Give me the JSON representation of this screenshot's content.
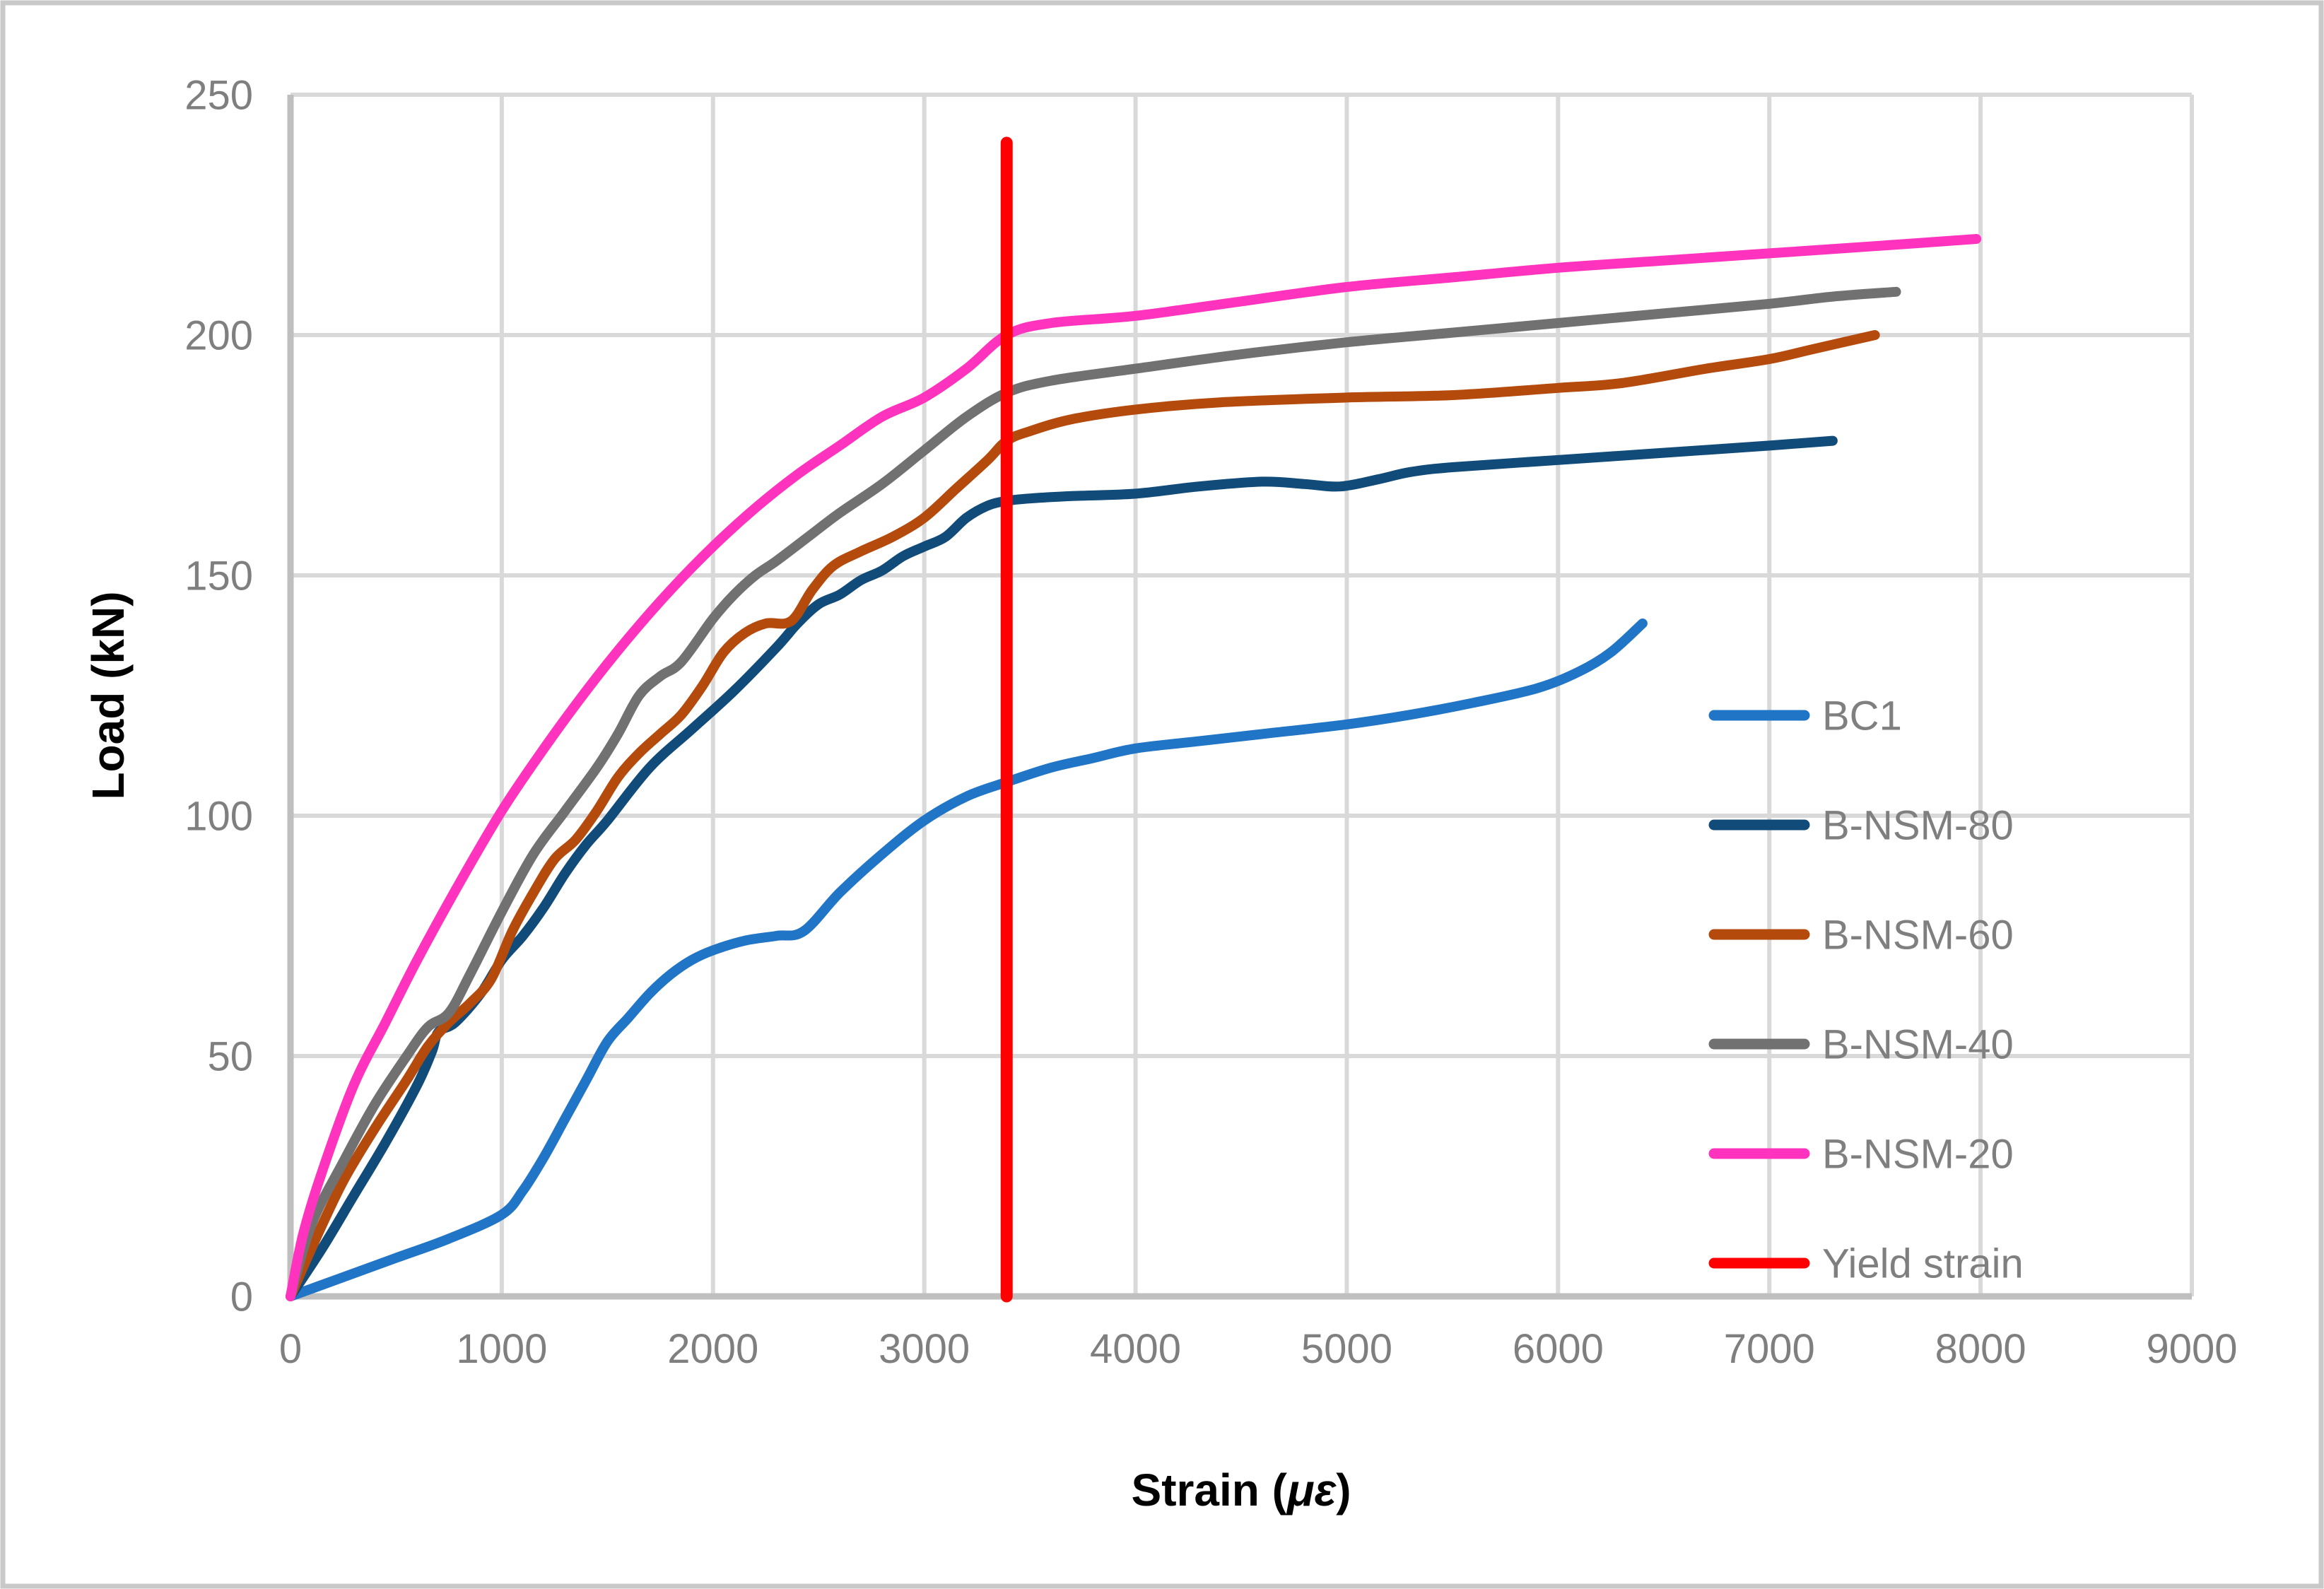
{
  "chart_data": {
    "type": "line",
    "title": "",
    "xlabel": "Strain (με)",
    "xlabel_parts": {
      "prefix": "Strain (",
      "mu": "με",
      "suffix": ")"
    },
    "ylabel": "Load (kN)",
    "xlim": [
      0,
      9000
    ],
    "ylim": [
      0,
      250
    ],
    "xticks": [
      0,
      1000,
      2000,
      3000,
      4000,
      5000,
      6000,
      7000,
      8000,
      9000
    ],
    "yticks": [
      0,
      50,
      100,
      150,
      200,
      250
    ],
    "grid": true,
    "legend_position": "middle-right",
    "legend": [
      "BC1",
      "B-NSM-80",
      "B-NSM-60",
      "B-NSM-40",
      "B-NSM-20",
      "Yield strain"
    ],
    "series": [
      {
        "name": "BC1",
        "color": "#2175C6",
        "points": [
          [
            0,
            0
          ],
          [
            250,
            4
          ],
          [
            500,
            8
          ],
          [
            750,
            12
          ],
          [
            1000,
            17
          ],
          [
            1100,
            22
          ],
          [
            1200,
            29
          ],
          [
            1300,
            37
          ],
          [
            1400,
            45
          ],
          [
            1500,
            53
          ],
          [
            1600,
            58
          ],
          [
            1700,
            63
          ],
          [
            1800,
            67
          ],
          [
            1900,
            70
          ],
          [
            2000,
            72
          ],
          [
            2150,
            74
          ],
          [
            2300,
            75
          ],
          [
            2430,
            76
          ],
          [
            2600,
            84
          ],
          [
            2800,
            92
          ],
          [
            3000,
            99
          ],
          [
            3200,
            104
          ],
          [
            3390,
            107
          ],
          [
            3600,
            110
          ],
          [
            3800,
            112
          ],
          [
            4000,
            114
          ],
          [
            4300,
            115.5
          ],
          [
            4600,
            117
          ],
          [
            5000,
            119
          ],
          [
            5300,
            121
          ],
          [
            5600,
            123.5
          ],
          [
            5900,
            126.5
          ],
          [
            6100,
            130
          ],
          [
            6250,
            134
          ],
          [
            6400,
            140
          ]
        ]
      },
      {
        "name": "B-NSM-80",
        "color": "#114B79",
        "points": [
          [
            0,
            0
          ],
          [
            150,
            10
          ],
          [
            300,
            21
          ],
          [
            450,
            32
          ],
          [
            600,
            44
          ],
          [
            670,
            51
          ],
          [
            700,
            55
          ],
          [
            780,
            57
          ],
          [
            900,
            63
          ],
          [
            1000,
            70
          ],
          [
            1100,
            75
          ],
          [
            1200,
            81
          ],
          [
            1300,
            88
          ],
          [
            1400,
            94
          ],
          [
            1500,
            99
          ],
          [
            1700,
            110
          ],
          [
            1900,
            118
          ],
          [
            2100,
            126
          ],
          [
            2300,
            135
          ],
          [
            2400,
            140
          ],
          [
            2500,
            144
          ],
          [
            2600,
            146
          ],
          [
            2700,
            149
          ],
          [
            2800,
            151
          ],
          [
            2900,
            154
          ],
          [
            3000,
            156
          ],
          [
            3100,
            158
          ],
          [
            3200,
            162
          ],
          [
            3300,
            164.5
          ],
          [
            3390,
            165.5
          ],
          [
            3500,
            166
          ],
          [
            3700,
            166.5
          ],
          [
            4000,
            167
          ],
          [
            4300,
            168.5
          ],
          [
            4600,
            169.5
          ],
          [
            4800,
            169
          ],
          [
            4970,
            168.5
          ],
          [
            5150,
            170
          ],
          [
            5300,
            171.5
          ],
          [
            5500,
            172.5
          ],
          [
            6000,
            174
          ],
          [
            6500,
            175.5
          ],
          [
            7000,
            177
          ],
          [
            7300,
            178
          ]
        ]
      },
      {
        "name": "B-NSM-60",
        "color": "#B54A0D",
        "points": [
          [
            0,
            0
          ],
          [
            120,
            12
          ],
          [
            250,
            24
          ],
          [
            400,
            35
          ],
          [
            550,
            45
          ],
          [
            650,
            52
          ],
          [
            750,
            57
          ],
          [
            850,
            61
          ],
          [
            950,
            66
          ],
          [
            1050,
            76
          ],
          [
            1150,
            84
          ],
          [
            1250,
            91
          ],
          [
            1350,
            95
          ],
          [
            1450,
            101
          ],
          [
            1550,
            108
          ],
          [
            1650,
            113
          ],
          [
            1750,
            117
          ],
          [
            1850,
            121
          ],
          [
            1950,
            127
          ],
          [
            2050,
            134
          ],
          [
            2150,
            138
          ],
          [
            2250,
            140
          ],
          [
            2370,
            140.5
          ],
          [
            2470,
            147
          ],
          [
            2570,
            152
          ],
          [
            2700,
            155
          ],
          [
            2850,
            158
          ],
          [
            3000,
            162
          ],
          [
            3150,
            168
          ],
          [
            3300,
            174
          ],
          [
            3390,
            178
          ],
          [
            3500,
            180
          ],
          [
            3700,
            182.5
          ],
          [
            4000,
            184.5
          ],
          [
            4400,
            186
          ],
          [
            5000,
            187
          ],
          [
            5500,
            187.5
          ],
          [
            6000,
            189
          ],
          [
            6300,
            190
          ],
          [
            6700,
            193
          ],
          [
            7000,
            195
          ],
          [
            7200,
            197
          ],
          [
            7500,
            200
          ]
        ]
      },
      {
        "name": "B-NSM-40",
        "color": "#717171",
        "points": [
          [
            0,
            0
          ],
          [
            100,
            15
          ],
          [
            250,
            28
          ],
          [
            400,
            40
          ],
          [
            550,
            50
          ],
          [
            650,
            56
          ],
          [
            750,
            59
          ],
          [
            850,
            67
          ],
          [
            1000,
            80
          ],
          [
            1150,
            92
          ],
          [
            1300,
            101
          ],
          [
            1450,
            110
          ],
          [
            1550,
            117
          ],
          [
            1650,
            125
          ],
          [
            1750,
            129
          ],
          [
            1850,
            132
          ],
          [
            2000,
            141
          ],
          [
            2100,
            146
          ],
          [
            2200,
            150
          ],
          [
            2300,
            153
          ],
          [
            2450,
            158
          ],
          [
            2600,
            163
          ],
          [
            2800,
            169
          ],
          [
            3000,
            176
          ],
          [
            3200,
            183
          ],
          [
            3390,
            188
          ],
          [
            3600,
            190.5
          ],
          [
            4000,
            193
          ],
          [
            4500,
            196
          ],
          [
            5000,
            198.5
          ],
          [
            5500,
            200.5
          ],
          [
            6000,
            202.5
          ],
          [
            6500,
            204.5
          ],
          [
            7000,
            206.5
          ],
          [
            7300,
            208
          ],
          [
            7600,
            209
          ]
        ]
      },
      {
        "name": "B-NSM-20",
        "color": "#FF33BE",
        "points": [
          [
            0,
            0
          ],
          [
            60,
            13
          ],
          [
            150,
            26
          ],
          [
            300,
            44
          ],
          [
            450,
            57
          ],
          [
            600,
            70
          ],
          [
            800,
            86
          ],
          [
            1000,
            101
          ],
          [
            1200,
            114
          ],
          [
            1400,
            126
          ],
          [
            1600,
            137
          ],
          [
            1800,
            147
          ],
          [
            2000,
            156
          ],
          [
            2200,
            164
          ],
          [
            2400,
            171
          ],
          [
            2600,
            177
          ],
          [
            2800,
            183
          ],
          [
            3000,
            187
          ],
          [
            3200,
            193
          ],
          [
            3390,
            200
          ],
          [
            3600,
            202.5
          ],
          [
            4000,
            204
          ],
          [
            4500,
            207
          ],
          [
            5000,
            210
          ],
          [
            5500,
            212
          ],
          [
            6000,
            214
          ],
          [
            6500,
            215.5
          ],
          [
            7000,
            217
          ],
          [
            7500,
            218.5
          ],
          [
            7980,
            220
          ]
        ]
      }
    ],
    "yield_line": {
      "name": "Yield strain",
      "color": "#FF0000",
      "x": 3390,
      "y_from": 0,
      "y_to": 240
    }
  },
  "colors": {
    "background": "#FFFFFF",
    "frame_border": "#C9C9C9",
    "gridline": "#D9D9D9",
    "axis_line": "#BFBFBF",
    "tick_text": "#7F7F7F",
    "legend_text": "#7F7F7F"
  }
}
